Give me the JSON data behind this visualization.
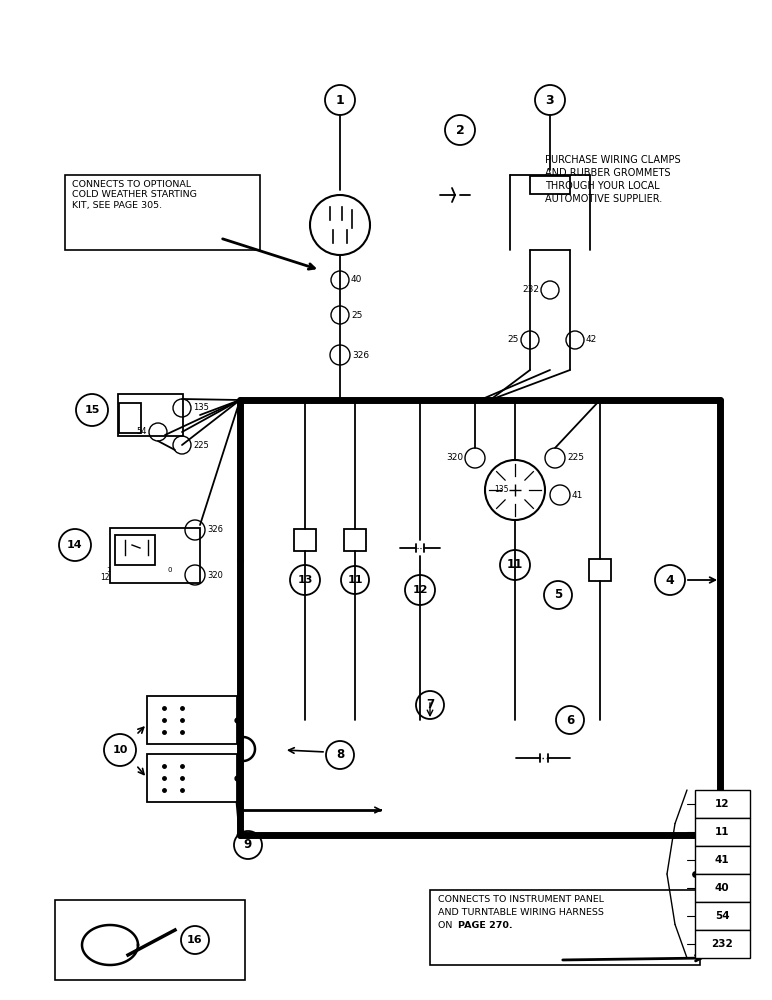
{
  "bg_color": "#ffffff",
  "lc": "#000000",
  "note_box1": "CONNECTS TO OPTIONAL\nCOLD WEATHER STARTING\nKIT, SEE PAGE 305.",
  "note_box2_lines": [
    "PURCHASE WIRING CLAMPS",
    "AND RUBBER GROMMETS",
    "THROUGH YOUR LOCAL",
    "AUTOMOTIVE SUPPLIER."
  ],
  "note_box3_line1": "CONNECTS TO INSTRUMENT PANEL",
  "note_box3_line2": "AND TURNTABLE WIRING HARNESS",
  "note_box3_line3": "ON ",
  "note_box3_bold": "PAGE 270.",
  "connector_labels": [
    "12",
    "11",
    "41",
    "40",
    "54",
    "232"
  ],
  "thick_lw": 5.0,
  "thin_lw": 1.3,
  "med_lw": 2.0
}
